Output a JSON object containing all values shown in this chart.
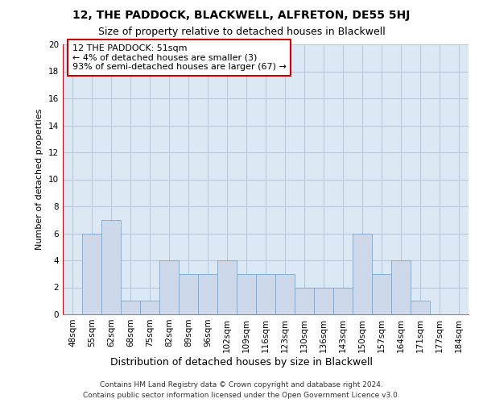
{
  "title": "12, THE PADDOCK, BLACKWELL, ALFRETON, DE55 5HJ",
  "subtitle": "Size of property relative to detached houses in Blackwell",
  "xlabel_bottom": "Distribution of detached houses by size in Blackwell",
  "ylabel": "Number of detached properties",
  "categories": [
    "48sqm",
    "55sqm",
    "62sqm",
    "68sqm",
    "75sqm",
    "82sqm",
    "89sqm",
    "96sqm",
    "102sqm",
    "109sqm",
    "116sqm",
    "123sqm",
    "130sqm",
    "136sqm",
    "143sqm",
    "150sqm",
    "157sqm",
    "164sqm",
    "171sqm",
    "177sqm",
    "184sqm"
  ],
  "values": [
    0,
    6,
    7,
    1,
    1,
    4,
    3,
    3,
    4,
    3,
    3,
    3,
    2,
    2,
    2,
    6,
    3,
    4,
    1,
    0,
    0
  ],
  "bar_color": "#cdd9ea",
  "bar_edge_color": "#7ba7d0",
  "annotation_line1": "12 THE PADDOCK: 51sqm",
  "annotation_line2": "← 4% of detached houses are smaller (3)",
  "annotation_line3": "93% of semi-detached houses are larger (67) →",
  "annotation_box_color": "#ffffff",
  "annotation_box_edge_color": "#cc0000",
  "red_line_x": -0.5,
  "ylim": [
    0,
    20
  ],
  "yticks": [
    0,
    2,
    4,
    6,
    8,
    10,
    12,
    14,
    16,
    18,
    20
  ],
  "bg_plot_color": "#dce9f5",
  "background_color": "#ffffff",
  "grid_color": "#b8c8d8",
  "footer_line1": "Contains HM Land Registry data © Crown copyright and database right 2024.",
  "footer_line2": "Contains public sector information licensed under the Open Government Licence v3.0.",
  "title_fontsize": 10,
  "subtitle_fontsize": 9,
  "ylabel_fontsize": 8,
  "tick_fontsize": 7.5,
  "annot_fontsize": 8,
  "footer_fontsize": 6.5
}
